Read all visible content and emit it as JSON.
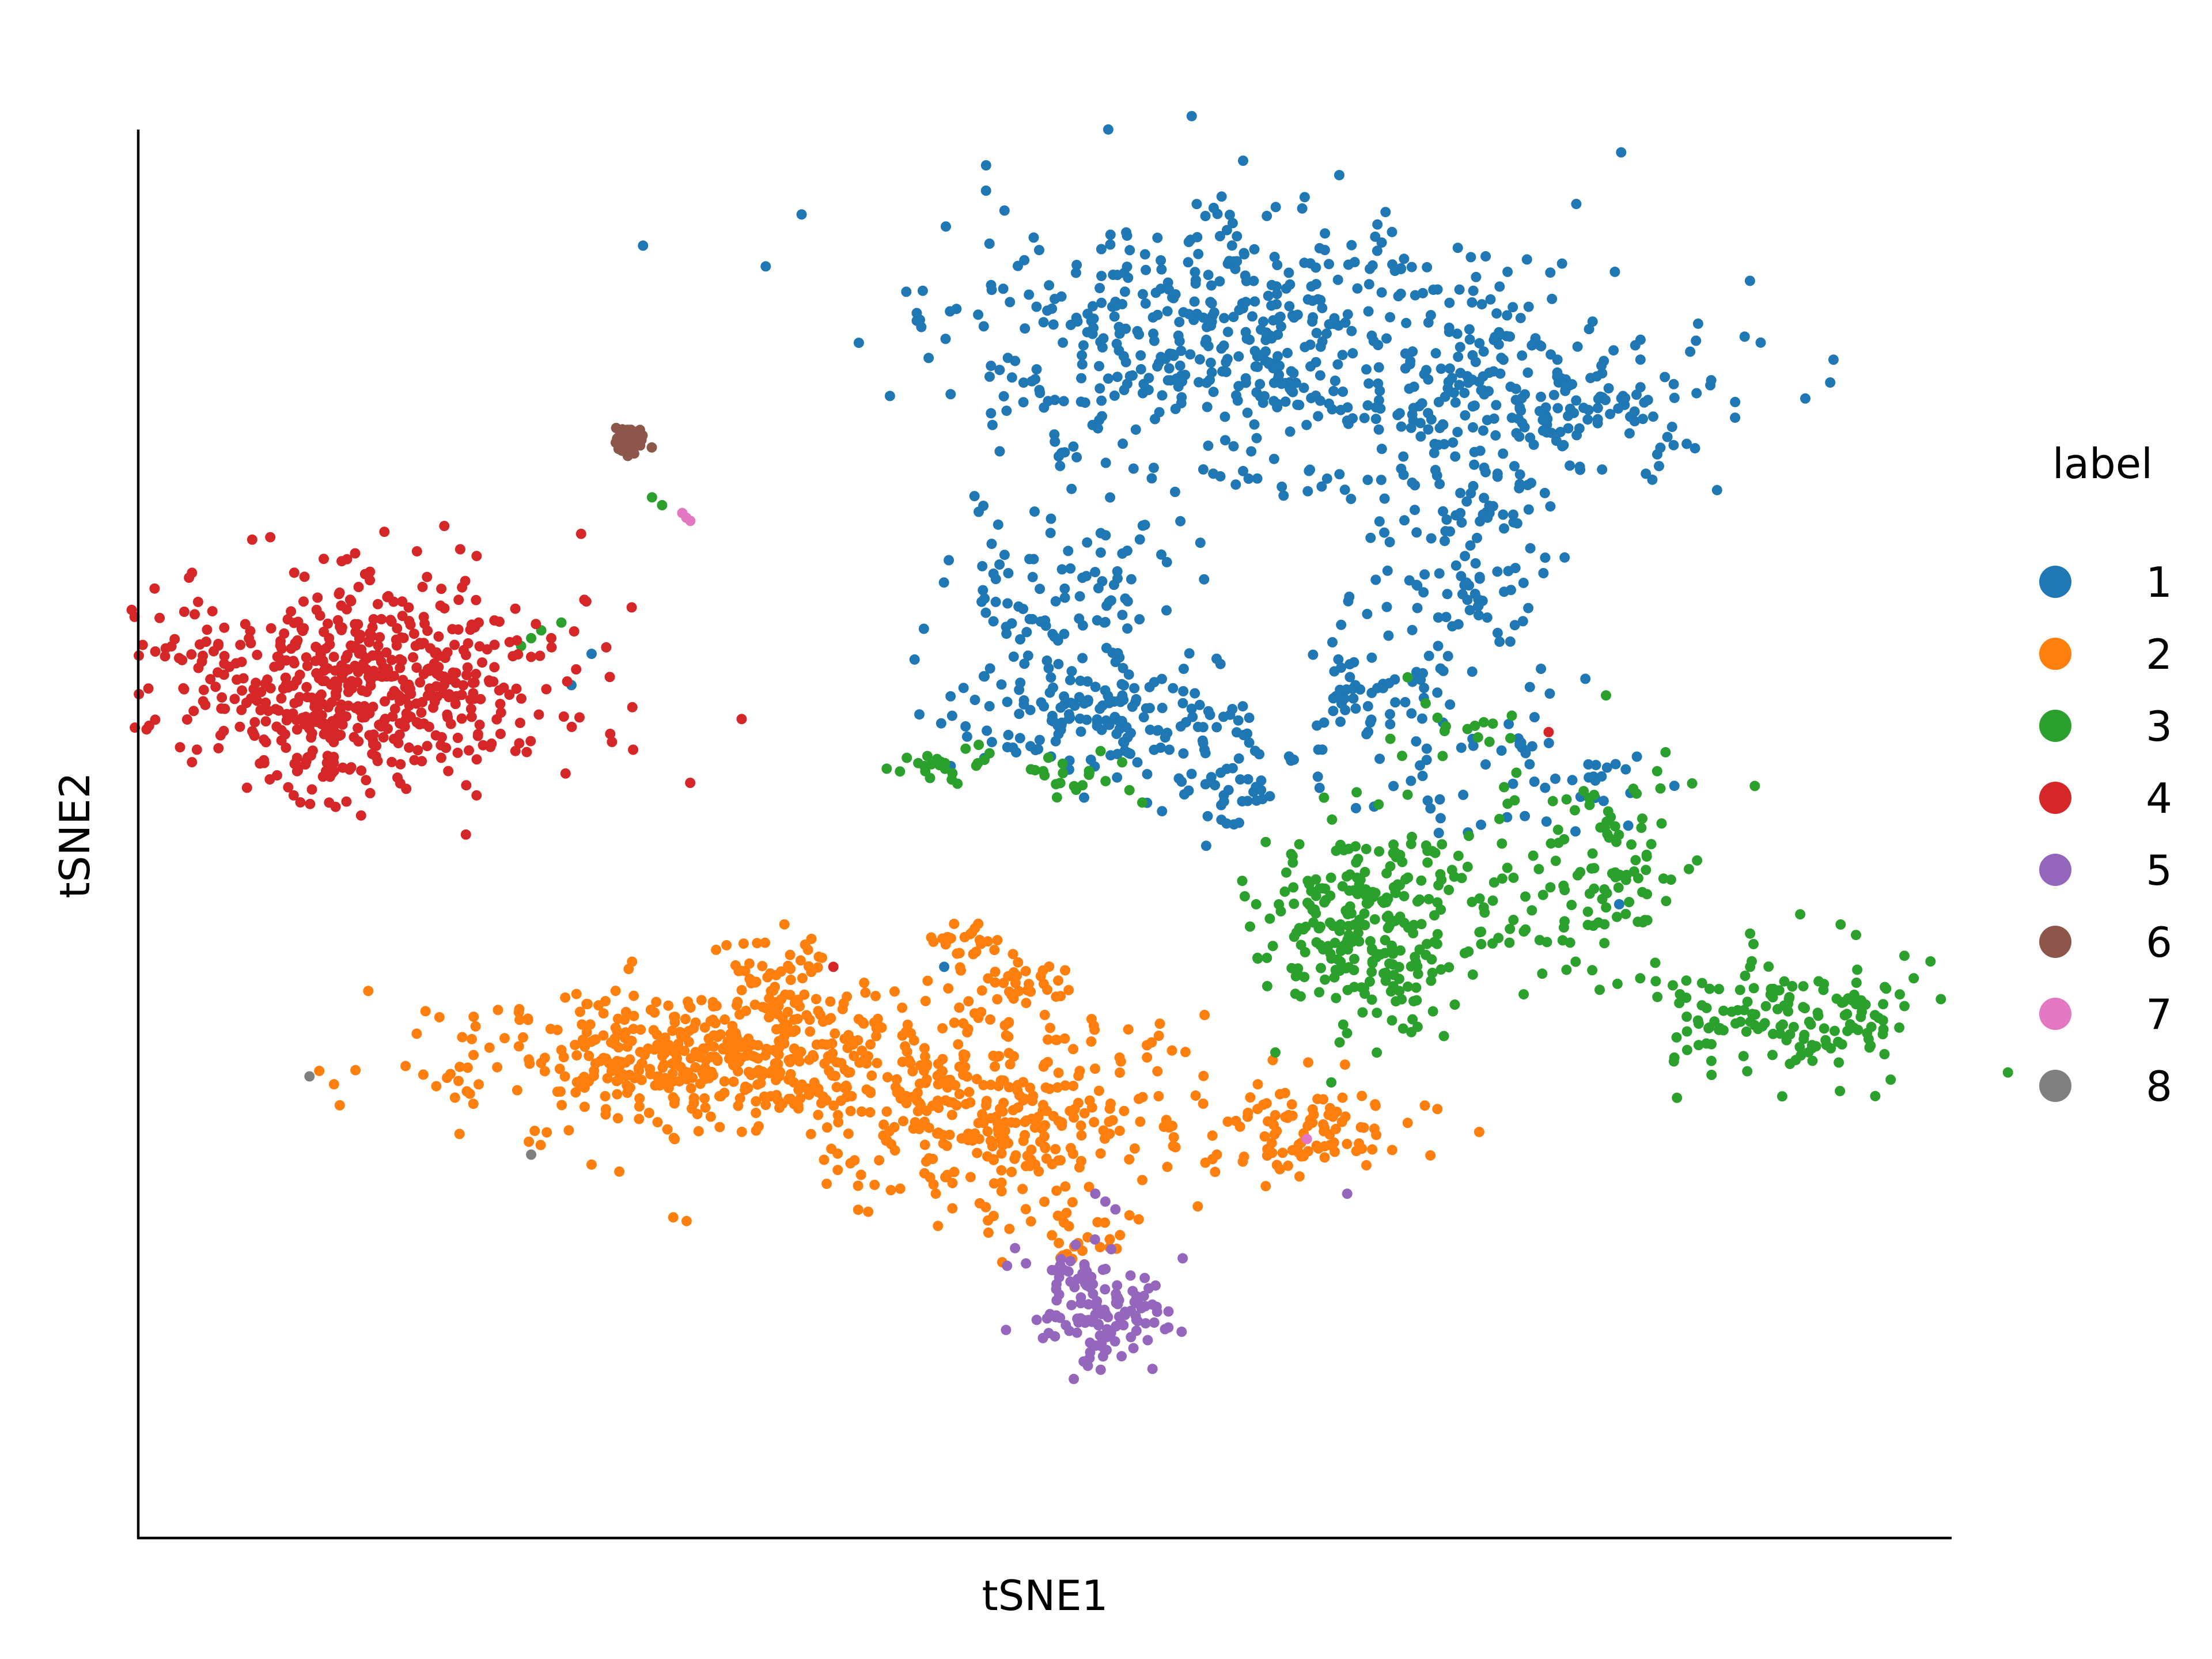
{
  "chart_data": {
    "type": "scatter",
    "title": "",
    "xlabel": "tSNE1",
    "ylabel": "tSNE2",
    "xlim": [
      -45,
      45
    ],
    "ylim": [
      -45,
      45
    ],
    "grid": false,
    "ticks": false,
    "legend": {
      "title": "label",
      "position": "right",
      "entries": [
        {
          "label": "1",
          "color": "#1f77b4"
        },
        {
          "label": "2",
          "color": "#ff7f0e"
        },
        {
          "label": "3",
          "color": "#2ca02c"
        },
        {
          "label": "4",
          "color": "#d62728"
        },
        {
          "label": "5",
          "color": "#9467bd"
        },
        {
          "label": "6",
          "color": "#8c564b"
        },
        {
          "label": "7",
          "color": "#e377c2"
        },
        {
          "label": "8",
          "color": "#7f7f7f"
        }
      ]
    },
    "series": [
      {
        "name": "1",
        "color": "#1f77b4",
        "clusters": [
          {
            "cx": 10,
            "cy": 31,
            "sx": 7.5,
            "sy": 4.5,
            "n": 560
          },
          {
            "cx": 25,
            "cy": 28,
            "sx": 4.5,
            "sy": 2.5,
            "n": 160
          },
          {
            "cx": 21,
            "cy": 18,
            "sx": 2.4,
            "sy": 5.0,
            "n": 140
          },
          {
            "cx": 2,
            "cy": 14,
            "sx": 3.0,
            "sy": 4.5,
            "n": 150
          },
          {
            "cx": 3,
            "cy": 7,
            "sx": 3.8,
            "sy": 1.8,
            "n": 120
          },
          {
            "cx": 9,
            "cy": 3.5,
            "sx": 1.6,
            "sy": 2.2,
            "n": 40
          },
          {
            "cx": 16,
            "cy": 9,
            "sx": 1.8,
            "sy": 1.5,
            "n": 50
          },
          {
            "cx": 23,
            "cy": 4,
            "sx": 4.0,
            "sy": 1.8,
            "n": 60
          }
        ],
        "points": [
          [
            -22.5,
            11.5
          ],
          [
            -23.5,
            9.5
          ],
          [
            -5,
            -8.5
          ],
          [
            28.5,
            -4.5
          ]
        ]
      },
      {
        "name": "2",
        "color": "#ff7f0e",
        "clusters": [
          {
            "cx": -16,
            "cy": -14.5,
            "sx": 6.5,
            "sy": 2.5,
            "n": 520
          },
          {
            "cx": -2,
            "cy": -18,
            "sx": 4.0,
            "sy": 3.5,
            "n": 300
          },
          {
            "cx": -13,
            "cy": -10,
            "sx": 1.5,
            "sy": 2.0,
            "n": 60
          },
          {
            "cx": -4,
            "cy": -7,
            "sx": 1.2,
            "sy": 0.6,
            "n": 25
          },
          {
            "cx": 13,
            "cy": -19,
            "sx": 2.8,
            "sy": 1.5,
            "n": 100
          },
          {
            "cx": -1.5,
            "cy": -9.5,
            "sx": 1.4,
            "sy": 0.7,
            "n": 30
          },
          {
            "cx": 2,
            "cy": -26,
            "sx": 1.0,
            "sy": 0.7,
            "n": 15
          }
        ]
      },
      {
        "name": "3",
        "color": "#2ca02c",
        "clusters": [
          {
            "cx": 16,
            "cy": -6,
            "sx": 2.8,
            "sy": 3.2,
            "n": 280
          },
          {
            "cx": 27,
            "cy": -2.5,
            "sx": 2.8,
            "sy": 3.0,
            "n": 120
          },
          {
            "cx": 37,
            "cy": -11.5,
            "sx": 3.2,
            "sy": 2.0,
            "n": 160
          },
          {
            "cx": -5,
            "cy": 4.5,
            "sx": 1.6,
            "sy": 1.0,
            "n": 25
          },
          {
            "cx": 1.5,
            "cy": 3.5,
            "sx": 1.3,
            "sy": 0.8,
            "n": 20
          },
          {
            "cx": 20.5,
            "cy": 6.5,
            "sx": 1.4,
            "sy": 1.0,
            "n": 15
          }
        ],
        "points": [
          [
            -25.5,
            12.5
          ],
          [
            -26,
            12
          ],
          [
            -25,
            13
          ],
          [
            -24,
            13.5
          ],
          [
            -19.5,
            21.5
          ],
          [
            -19,
            21
          ],
          [
            18,
            10
          ],
          [
            35,
            -8.5
          ]
        ]
      },
      {
        "name": "4",
        "color": "#d62728",
        "clusters": [
          {
            "cx": -34,
            "cy": 9.5,
            "sx": 4.8,
            "sy": 3.4,
            "n": 600
          }
        ],
        "points": [
          [
            -24.5,
            12.5
          ],
          [
            25,
            6.5
          ],
          [
            -10.5,
            -8.5
          ]
        ]
      },
      {
        "name": "5",
        "color": "#9467bd",
        "clusters": [
          {
            "cx": 3,
            "cy": -31,
            "sx": 1.6,
            "sy": 1.6,
            "n": 110
          },
          {
            "cx": 1.5,
            "cy": -28,
            "sx": 1.5,
            "sy": 1.0,
            "n": 25
          }
        ],
        "points": [
          [
            2.5,
            -23
          ],
          [
            3,
            -23.5
          ],
          [
            15,
            -23
          ],
          [
            3.5,
            -24
          ]
        ]
      },
      {
        "name": "6",
        "color": "#8c564b",
        "clusters": [
          {
            "cx": -20.5,
            "cy": 25,
            "sx": 0.5,
            "sy": 0.5,
            "n": 45
          }
        ]
      },
      {
        "name": "7",
        "color": "#e377c2",
        "clusters": [],
        "points": [
          [
            -18,
            20.5
          ],
          [
            -17.8,
            20.2
          ],
          [
            -17.6,
            20
          ],
          [
            13,
            -19.5
          ]
        ]
      },
      {
        "name": "8",
        "color": "#7f7f7f",
        "clusters": [],
        "points": [
          [
            -36.5,
            -15.5
          ],
          [
            -25.5,
            -20.5
          ]
        ]
      }
    ]
  }
}
